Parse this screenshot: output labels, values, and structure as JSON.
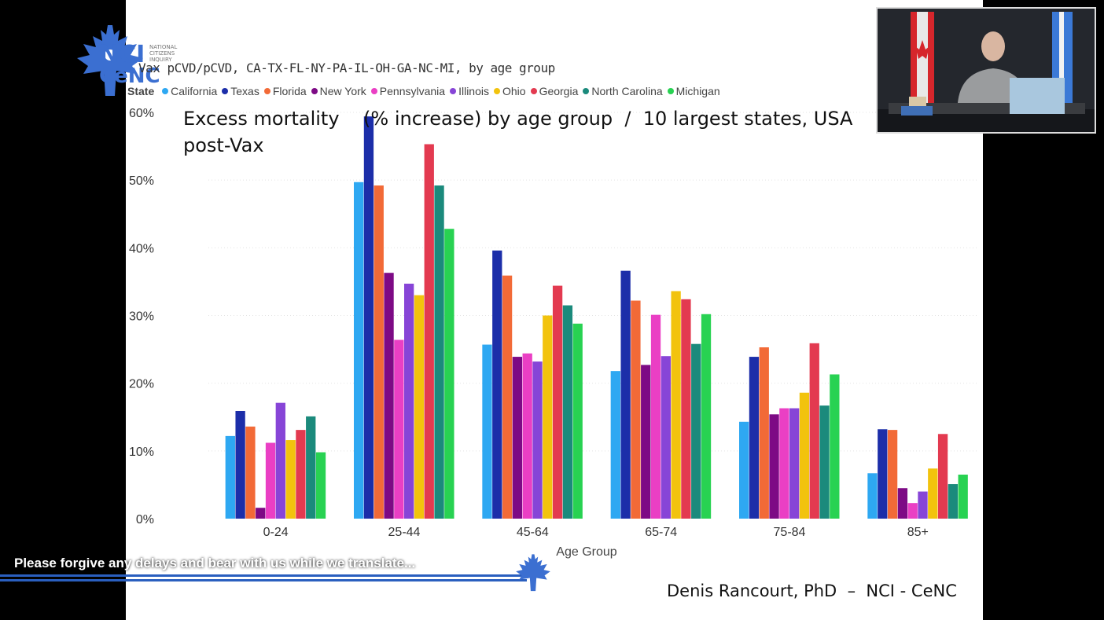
{
  "subtitle": "Vax pCVD/pCVD, CA-TX-FL-NY-PA-IL-OH-GA-NC-MI, by age group",
  "headline_line1": "Excess mortality    (% increase) by age group  /  10 largest states, USA",
  "headline_line2": "post-Vax",
  "credit": "Denis Rancourt, PhD  –  NCI - CeNC",
  "banner_text": "Please forgive any delays and bear with us while we translate...",
  "logo": {
    "nci": "NCI",
    "cenc": "CeNC",
    "small_text": "NATIONAL CITIZENS INQUIRY"
  },
  "icons": {
    "logo": "maple-leaf-logo-icon",
    "banner": "maple-leaf-icon"
  },
  "chart_data": {
    "type": "bar",
    "legend_title": "State",
    "legend_placement": "top-left",
    "categories": [
      "0-24",
      "25-44",
      "45-64",
      "65-74",
      "75-84",
      "85+"
    ],
    "xlabel": "Age Group",
    "ylabel": "",
    "ylim": [
      0,
      60
    ],
    "yticks": [
      "0%",
      "10%",
      "20%",
      "30%",
      "40%",
      "50%",
      "60%"
    ],
    "grid": true,
    "series": [
      {
        "name": "California",
        "color": "#2ea8f2",
        "values": [
          12.2,
          49.7,
          25.7,
          21.8,
          14.3,
          6.7
        ]
      },
      {
        "name": "Texas",
        "color": "#1c2ea9",
        "values": [
          15.9,
          59.4,
          39.6,
          36.6,
          23.9,
          13.2
        ]
      },
      {
        "name": "Florida",
        "color": "#f26a37",
        "values": [
          13.6,
          49.2,
          35.9,
          32.2,
          25.3,
          13.1
        ]
      },
      {
        "name": "New York",
        "color": "#7d0a85",
        "values": [
          1.6,
          36.3,
          23.9,
          22.7,
          15.4,
          4.5
        ]
      },
      {
        "name": "Pennsylvania",
        "color": "#ea3fc4",
        "values": [
          11.2,
          26.4,
          24.4,
          30.1,
          16.3,
          2.3
        ]
      },
      {
        "name": "Illinois",
        "color": "#8745d7",
        "values": [
          17.1,
          34.7,
          23.2,
          24.0,
          16.3,
          4.0
        ]
      },
      {
        "name": "Ohio",
        "color": "#f2c30d",
        "values": [
          11.6,
          33.0,
          30.0,
          33.6,
          18.6,
          7.4
        ]
      },
      {
        "name": "Georgia",
        "color": "#e33a50",
        "values": [
          13.1,
          55.3,
          34.4,
          32.4,
          25.9,
          12.5
        ]
      },
      {
        "name": "North Carolina",
        "color": "#1b8a7c",
        "values": [
          15.1,
          49.2,
          31.5,
          25.8,
          16.7,
          5.1
        ]
      },
      {
        "name": "Michigan",
        "color": "#28d252",
        "values": [
          9.8,
          42.8,
          28.8,
          30.2,
          21.3,
          6.5
        ]
      }
    ]
  }
}
